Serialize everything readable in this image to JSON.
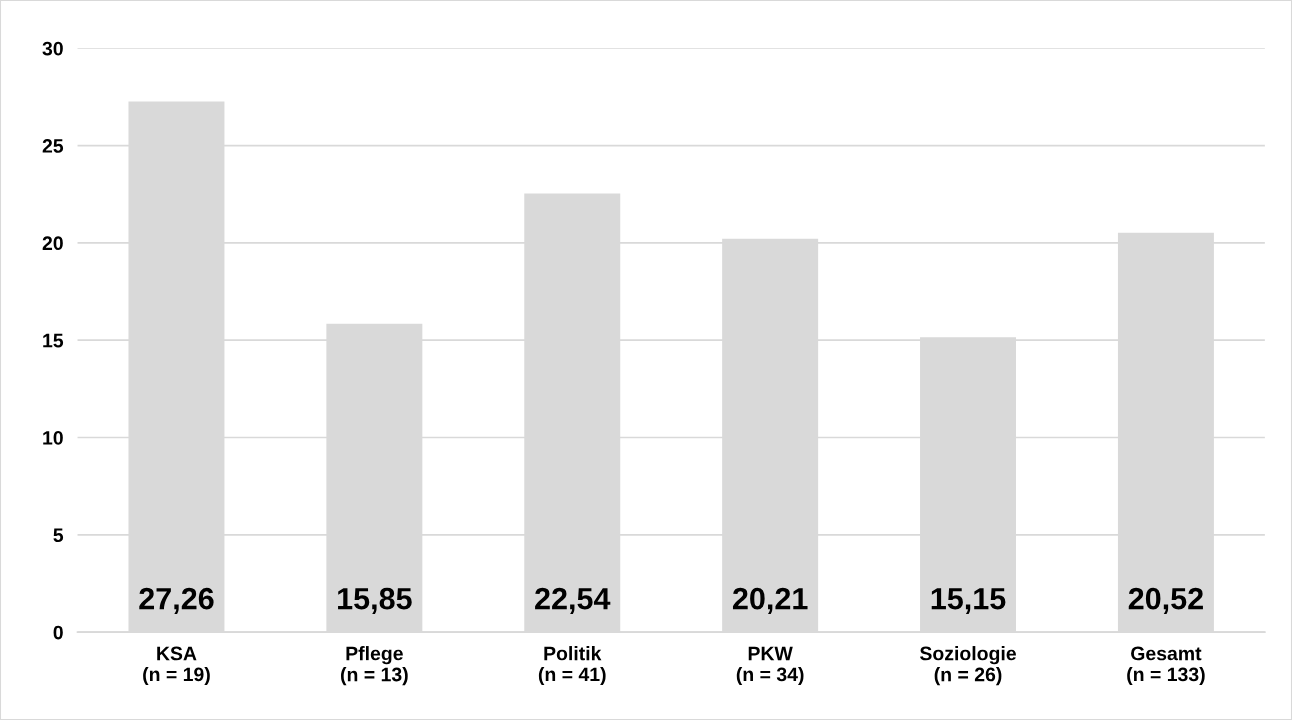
{
  "chart_data": {
    "type": "bar",
    "categories": [
      "KSA\n(n = 19)",
      "Pflege\n(n = 13)",
      "Politik\n(n = 41)",
      "PKW\n(n = 34)",
      "Soziologie\n(n = 26)",
      "Gesamt\n(n = 133)"
    ],
    "values": [
      27.26,
      15.85,
      22.54,
      20.21,
      15.15,
      20.52
    ],
    "value_labels": [
      "27,26",
      "15,85",
      "22,54",
      "20,21",
      "15,15",
      "20,52"
    ],
    "color": "#d9d9d9",
    "ylim": [
      0,
      30
    ],
    "yticks": [
      0,
      5,
      10,
      15,
      20,
      25,
      30
    ],
    "grid": "y"
  }
}
